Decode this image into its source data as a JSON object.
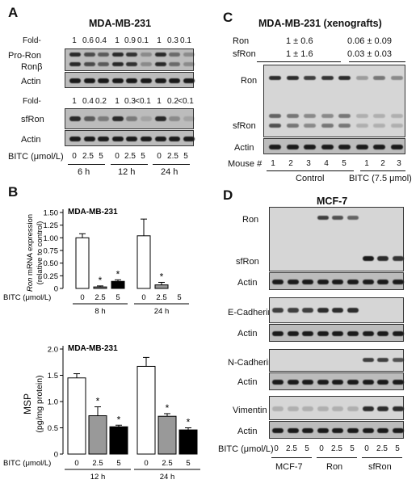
{
  "panelA": {
    "letter": "A",
    "title": "MDA-MB-231",
    "fold_label": "Fold-",
    "fold_row1": [
      "1",
      "0.6",
      "0.4",
      "1",
      "0.9",
      "0.1",
      "1",
      "0.3",
      "0.1"
    ],
    "fold_row2": [
      "1",
      "0.4",
      "0.2",
      "1",
      "0.3",
      "<0.1",
      "1",
      "0.2",
      "<0.1"
    ],
    "blot_labels": [
      "Pro-Ron",
      "Ronβ",
      "Actin",
      "sfRon",
      "Actin"
    ],
    "bitc_label": "BITC (μmol/L)",
    "doses": [
      "0",
      "2.5",
      "5",
      "0",
      "2.5",
      "5",
      "0",
      "2.5",
      "5"
    ],
    "times": [
      "6 h",
      "12 h",
      "24 h"
    ]
  },
  "panelB": {
    "letter": "B",
    "top": {
      "title": "MDA-MB-231",
      "ylabel_gene": "Ron",
      "ylabel_rest": " mRNA expression",
      "ylabel2": "(relative to control)",
      "yticks": [
        "0",
        "0.25",
        "0.50",
        "0.75",
        "1.00",
        "1.25",
        "1.50"
      ],
      "bitc_label": "BITC (μmol/L)",
      "doses": [
        "0",
        "2.5",
        "5",
        "0",
        "2.5",
        "5"
      ],
      "times": [
        "8 h",
        "24 h"
      ],
      "star": "*"
    },
    "bottom": {
      "title": "MDA-MB-231",
      "ylabel": "MSP",
      "ylabel2": "(pg/mg protein)",
      "yticks": [
        "0",
        "0.5",
        "1.0",
        "1.5",
        "2.0"
      ],
      "bitc_label": "BITC (μmol/L)",
      "doses": [
        "0",
        "2.5",
        "5",
        "0",
        "2.5",
        "5"
      ],
      "times": [
        "12 h",
        "24 h"
      ],
      "star": "*"
    }
  },
  "panelC": {
    "letter": "C",
    "title": "MDA-MB-231 (xenografts)",
    "row_labels": [
      "Ron",
      "sfRon"
    ],
    "control_vals": [
      "1 ± 0.6",
      "1 ± 1.6"
    ],
    "bitc_vals": [
      "0.06 ± 0.09",
      "0.03 ± 0.03"
    ],
    "blot_labels": [
      "Ron",
      "sfRon",
      "Actin"
    ],
    "mouse_label": "Mouse #",
    "mice": [
      "1",
      "2",
      "3",
      "4",
      "5",
      "1",
      "2",
      "3"
    ],
    "group_labels": [
      "Control",
      "BITC (7.5 μmol)"
    ]
  },
  "panelD": {
    "letter": "D",
    "title": "MCF-7",
    "blot_labels": [
      "Ron",
      "sfRon",
      "Actin",
      "E-Cadherin",
      "Actin",
      "N-Cadherin",
      "Actin",
      "Vimentin",
      "Actin"
    ],
    "bitc_label": "BITC (μmol/L)",
    "doses": [
      "0",
      "2.5",
      "5",
      "0",
      "2.5",
      "5",
      "0",
      "2.5",
      "5"
    ],
    "groups": [
      "MCF-7",
      "Ron",
      "sfRon"
    ]
  },
  "chart_data": [
    {
      "type": "bar",
      "title": "MDA-MB-231",
      "ylabel": "Ron mRNA expression (relative to control)",
      "xlabel": "BITC (μmol/L)",
      "ylim": [
        0,
        1.5
      ],
      "groups": [
        "8 h",
        "24 h"
      ],
      "categories": [
        "0",
        "2.5",
        "5"
      ],
      "values": [
        [
          1.0,
          0.03,
          0.14
        ],
        [
          1.04,
          0.07,
          0
        ]
      ],
      "errors": [
        [
          0.08,
          0.02,
          0.03
        ],
        [
          0.33,
          0.05,
          0
        ]
      ],
      "significant": [
        [
          false,
          true,
          true
        ],
        [
          false,
          true,
          false
        ]
      ],
      "colors": [
        "#ffffff",
        "#999999",
        "#000000"
      ]
    },
    {
      "type": "bar",
      "title": "MDA-MB-231",
      "ylabel": "MSP (pg/mg protein)",
      "xlabel": "BITC (μmol/L)",
      "ylim": [
        0,
        2.0
      ],
      "groups": [
        "12 h",
        "24 h"
      ],
      "categories": [
        "0",
        "2.5",
        "5"
      ],
      "values": [
        [
          1.45,
          0.73,
          0.52
        ],
        [
          1.67,
          0.72,
          0.46
        ]
      ],
      "errors": [
        [
          0.08,
          0.17,
          0.03
        ],
        [
          0.17,
          0.05,
          0.04
        ]
      ],
      "significant": [
        [
          false,
          true,
          true
        ],
        [
          false,
          true,
          true
        ]
      ],
      "colors": [
        "#ffffff",
        "#999999",
        "#000000"
      ]
    }
  ]
}
